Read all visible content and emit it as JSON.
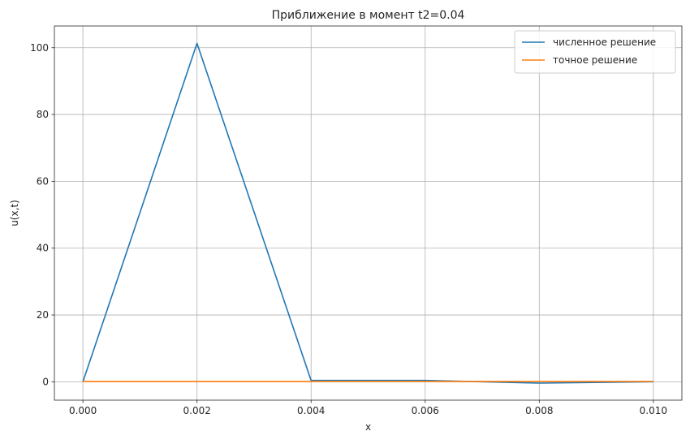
{
  "chart_data": {
    "type": "line",
    "title": "Приближение в момент t2=0.04",
    "xlabel": "x",
    "ylabel": "u(x,t)",
    "xlim": [
      -0.0005,
      0.0105
    ],
    "ylim": [
      -5.5,
      106.5
    ],
    "xticks": [
      0.0,
      0.002,
      0.004,
      0.006,
      0.008,
      0.01
    ],
    "xtick_labels": [
      "0.000",
      "0.002",
      "0.004",
      "0.006",
      "0.008",
      "0.010"
    ],
    "yticks": [
      0,
      20,
      40,
      60,
      80,
      100
    ],
    "ytick_labels": [
      "0",
      "20",
      "40",
      "60",
      "80",
      "100"
    ],
    "grid": true,
    "legend_position": "top-right",
    "series": [
      {
        "name": "численное решение",
        "color": "#1f77b4",
        "x": [
          0.0,
          0.002,
          0.004,
          0.006,
          0.008,
          0.01
        ],
        "y": [
          0.0,
          101.3,
          0.4,
          0.4,
          -0.4,
          0.0
        ]
      },
      {
        "name": "точное решение",
        "color": "#ff7f0e",
        "x": [
          0.0,
          0.002,
          0.004,
          0.006,
          0.008,
          0.01
        ],
        "y": [
          0.1,
          0.1,
          0.1,
          0.1,
          0.1,
          0.1
        ]
      }
    ]
  }
}
